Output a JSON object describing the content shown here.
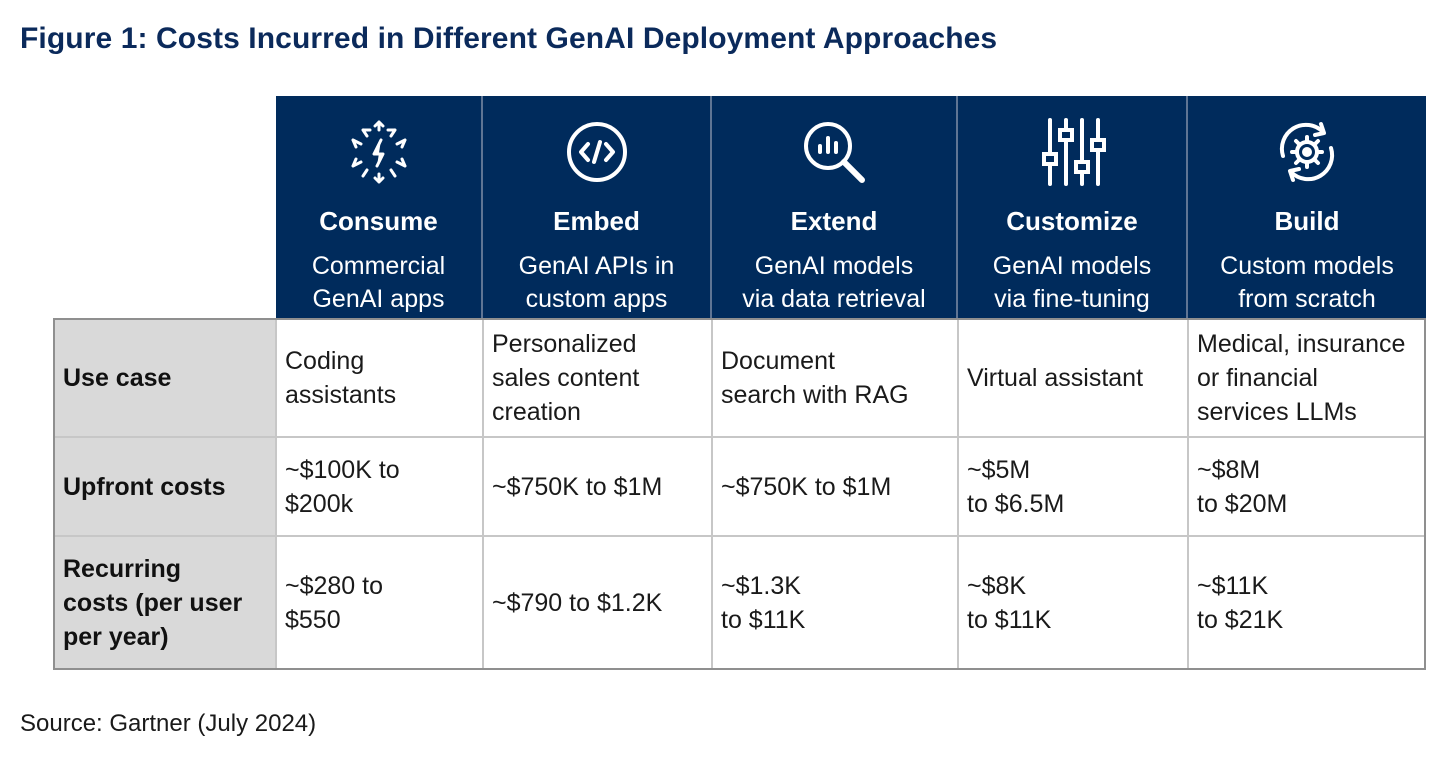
{
  "title": "Figure 1: Costs Incurred in Different GenAI Deployment Approaches",
  "source": "Source: Gartner (July 2024)",
  "chart_data": {
    "type": "table",
    "columns": [
      {
        "name": "Consume",
        "description": "Commercial\nGenAI apps",
        "icon": "lightning-network-icon"
      },
      {
        "name": "Embed",
        "description": "GenAI APIs in\ncustom apps",
        "icon": "code-brackets-icon"
      },
      {
        "name": "Extend",
        "description": "GenAI models\nvia data retrieval",
        "icon": "magnifier-chart-icon"
      },
      {
        "name": "Customize",
        "description": "GenAI models\nvia fine-tuning",
        "icon": "sliders-icon"
      },
      {
        "name": "Build",
        "description": "Custom models\nfrom scratch",
        "icon": "gear-cycle-icon"
      }
    ],
    "rows": [
      {
        "label": "Use case",
        "values": [
          "Coding\nassistants",
          "Personalized\nsales content\ncreation",
          "Document\nsearch with RAG",
          "Virtual assistant",
          "Medical, insurance\nor financial\nservices LLMs"
        ]
      },
      {
        "label": "Upfront costs",
        "values": [
          "~$100K to\n$200k",
          "~$750K to $1M",
          "~$750K to $1M",
          "~$5M\nto $6.5M",
          "~$8M\nto $20M"
        ]
      },
      {
        "label": "Recurring\ncosts (per user\nper year)",
        "values": [
          "~$280 to\n$550",
          "~$790 to $1.2K",
          "~$1.3K\nto $11K",
          "~$8K\nto $11K",
          "~$11K\nto $21K"
        ]
      }
    ]
  },
  "colors": {
    "header_bg": "#002b5c",
    "label_bg": "#d9d9d9",
    "title": "#0b2a5b"
  }
}
